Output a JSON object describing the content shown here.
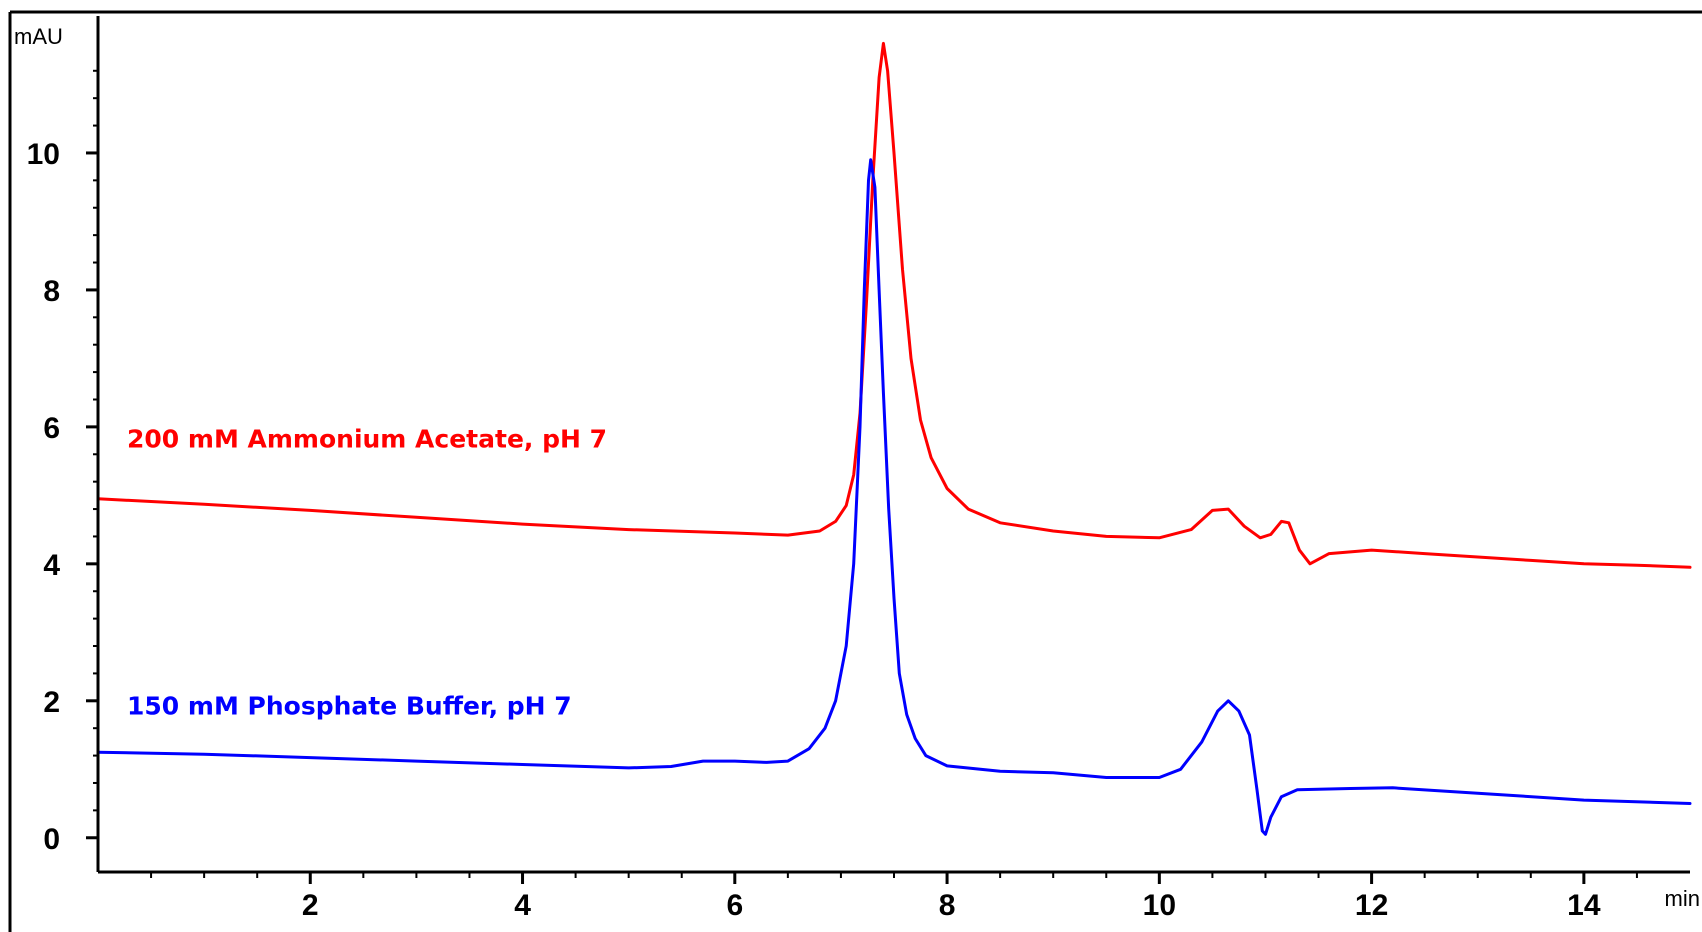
{
  "chart_data": {
    "type": "line",
    "title": "",
    "xlabel": "min",
    "ylabel": "mAU",
    "xlim": [
      0,
      15
    ],
    "ylim": [
      -0.5,
      12
    ],
    "x_ticks": [
      2,
      4,
      6,
      8,
      10,
      12,
      14
    ],
    "y_ticks": [
      0,
      2,
      4,
      6,
      8,
      10
    ],
    "grid": false,
    "series": [
      {
        "name": "200 mM Ammonium Acetate, pH 7",
        "color": "#ff0000",
        "points": [
          [
            0.0,
            4.95
          ],
          [
            1.0,
            4.87
          ],
          [
            2.0,
            4.78
          ],
          [
            3.0,
            4.68
          ],
          [
            4.0,
            4.58
          ],
          [
            5.0,
            4.5
          ],
          [
            6.0,
            4.45
          ],
          [
            6.5,
            4.42
          ],
          [
            6.8,
            4.48
          ],
          [
            6.95,
            4.62
          ],
          [
            7.05,
            4.85
          ],
          [
            7.12,
            5.3
          ],
          [
            7.18,
            6.2
          ],
          [
            7.24,
            7.8
          ],
          [
            7.3,
            9.6
          ],
          [
            7.36,
            11.1
          ],
          [
            7.4,
            11.6
          ],
          [
            7.44,
            11.2
          ],
          [
            7.5,
            10.0
          ],
          [
            7.58,
            8.3
          ],
          [
            7.66,
            7.0
          ],
          [
            7.75,
            6.1
          ],
          [
            7.85,
            5.55
          ],
          [
            8.0,
            5.1
          ],
          [
            8.2,
            4.8
          ],
          [
            8.5,
            4.6
          ],
          [
            9.0,
            4.48
          ],
          [
            9.5,
            4.4
          ],
          [
            10.0,
            4.38
          ],
          [
            10.3,
            4.5
          ],
          [
            10.5,
            4.78
          ],
          [
            10.65,
            4.8
          ],
          [
            10.8,
            4.55
          ],
          [
            10.95,
            4.38
          ],
          [
            11.05,
            4.43
          ],
          [
            11.15,
            4.62
          ],
          [
            11.22,
            4.6
          ],
          [
            11.32,
            4.2
          ],
          [
            11.42,
            4.0
          ],
          [
            11.6,
            4.15
          ],
          [
            12.0,
            4.2
          ],
          [
            12.5,
            4.15
          ],
          [
            13.0,
            4.1
          ],
          [
            13.5,
            4.05
          ],
          [
            14.0,
            4.0
          ],
          [
            14.5,
            3.98
          ],
          [
            15.0,
            3.95
          ]
        ]
      },
      {
        "name": "150 mM Phosphate Buffer, pH 7",
        "color": "#0000ff",
        "points": [
          [
            0.0,
            1.25
          ],
          [
            1.0,
            1.22
          ],
          [
            2.0,
            1.17
          ],
          [
            3.0,
            1.12
          ],
          [
            4.0,
            1.07
          ],
          [
            5.0,
            1.02
          ],
          [
            5.4,
            1.04
          ],
          [
            5.7,
            1.12
          ],
          [
            6.0,
            1.12
          ],
          [
            6.3,
            1.1
          ],
          [
            6.5,
            1.12
          ],
          [
            6.7,
            1.3
          ],
          [
            6.85,
            1.6
          ],
          [
            6.95,
            2.0
          ],
          [
            7.05,
            2.8
          ],
          [
            7.12,
            4.0
          ],
          [
            7.18,
            6.0
          ],
          [
            7.22,
            8.0
          ],
          [
            7.26,
            9.6
          ],
          [
            7.28,
            9.9
          ],
          [
            7.32,
            9.5
          ],
          [
            7.36,
            8.0
          ],
          [
            7.4,
            6.5
          ],
          [
            7.45,
            4.8
          ],
          [
            7.5,
            3.5
          ],
          [
            7.55,
            2.4
          ],
          [
            7.62,
            1.8
          ],
          [
            7.7,
            1.45
          ],
          [
            7.8,
            1.2
          ],
          [
            8.0,
            1.05
          ],
          [
            8.5,
            0.97
          ],
          [
            9.0,
            0.95
          ],
          [
            9.5,
            0.88
          ],
          [
            10.0,
            0.88
          ],
          [
            10.2,
            1.0
          ],
          [
            10.4,
            1.4
          ],
          [
            10.55,
            1.85
          ],
          [
            10.65,
            2.0
          ],
          [
            10.75,
            1.85
          ],
          [
            10.85,
            1.5
          ],
          [
            10.92,
            0.7
          ],
          [
            10.97,
            0.1
          ],
          [
            11.0,
            0.05
          ],
          [
            11.05,
            0.3
          ],
          [
            11.15,
            0.6
          ],
          [
            11.3,
            0.7
          ],
          [
            11.8,
            0.72
          ],
          [
            12.2,
            0.73
          ],
          [
            13.0,
            0.65
          ],
          [
            14.0,
            0.55
          ],
          [
            15.0,
            0.5
          ]
        ]
      }
    ]
  }
}
